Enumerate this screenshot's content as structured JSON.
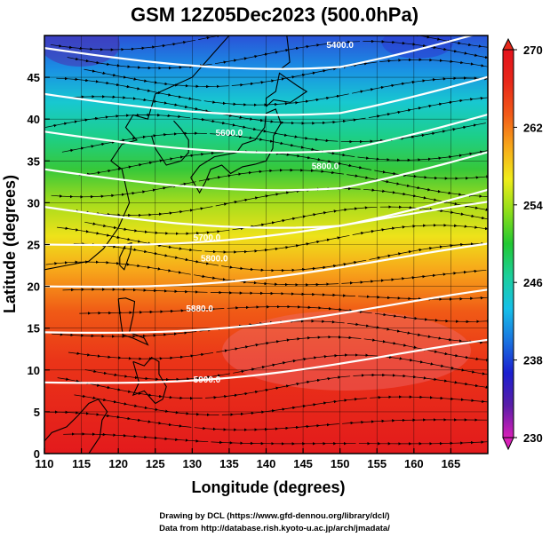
{
  "title": "GSM 12Z05Dec2023 (500.0hPa)",
  "x_axis_label": "Longitude (degrees)",
  "y_axis_label": "Latitude  (degrees)",
  "credits": [
    "Drawing by DCL (https://www.gfd-dennou.org/library/dcl/)",
    "Data from http://database.rish.kyoto-u.ac.jp/arch/jmadata/"
  ],
  "colors": {
    "contour_line": "#ffffff",
    "streamline": "#000000",
    "coastline": "#000000",
    "colorbar_gradient": [
      "#d81fb8",
      "#5a1ea8",
      "#1b1fd0",
      "#1a74e0",
      "#16c0e8",
      "#1ccf9a",
      "#22c832",
      "#8ede1a",
      "#f0ec1a",
      "#f7a81a",
      "#f25a18",
      "#e8281a",
      "#e3121c"
    ]
  },
  "chart_data": {
    "type": "heatmap",
    "title": "GSM 12Z05Dec2023 (500.0hPa)",
    "xlabel": "Longitude (degrees)",
    "ylabel": "Latitude  (degrees)",
    "xlim": [
      110,
      170
    ],
    "ylim": [
      0,
      50
    ],
    "x_ticks": [
      110,
      115,
      120,
      125,
      130,
      135,
      140,
      145,
      150,
      155,
      160,
      165
    ],
    "y_ticks": [
      0,
      5,
      10,
      15,
      20,
      25,
      30,
      35,
      40,
      45
    ],
    "colorbar": {
      "min": 230,
      "max": 270,
      "ticks": [
        230,
        238,
        246,
        254,
        262,
        270
      ]
    },
    "geopotential_contours": [
      {
        "label": "5400.0",
        "lon": 150,
        "lat": 48.5
      },
      {
        "label": "5600.0",
        "lon": 135,
        "lat": 38
      },
      {
        "label": "5800.0",
        "lon": 148,
        "lat": 34
      },
      {
        "label": "5700.0",
        "lon": 132,
        "lat": 25.5
      },
      {
        "label": "5800.0",
        "lon": 133,
        "lat": 23
      },
      {
        "label": "5880.0",
        "lon": 131,
        "lat": 17
      },
      {
        "label": "5900.0",
        "lon": 132,
        "lat": 8.5
      }
    ],
    "grid": true
  }
}
